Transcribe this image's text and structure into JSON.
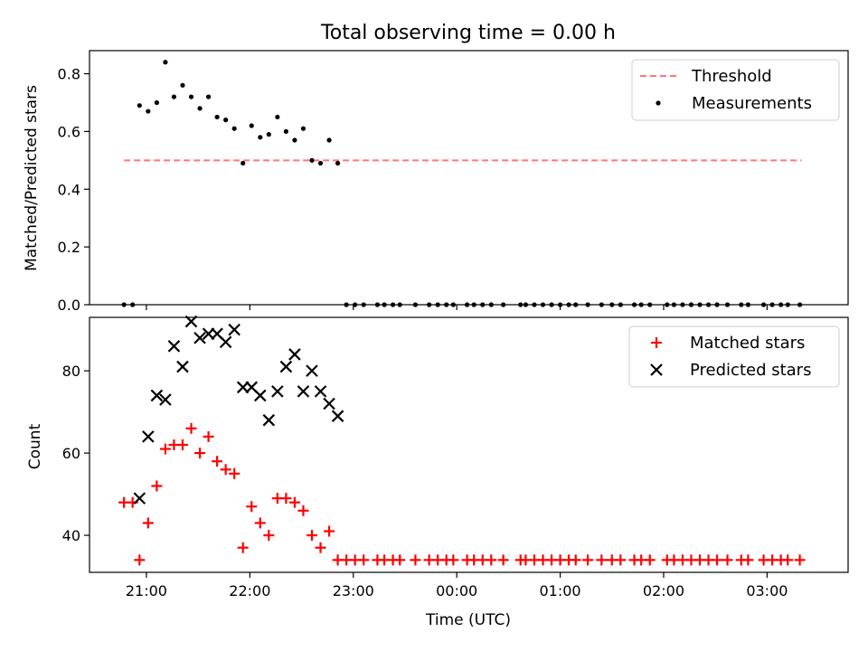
{
  "chart_data": [
    {
      "type": "scatter",
      "title": "Total observing time = 0.00 h",
      "xlabel": "",
      "ylabel": "Matched/Predicted stars",
      "ylim": [
        0.0,
        0.88
      ],
      "xlim": [
        "20:27",
        "03:47"
      ],
      "x_ticks": [
        "21:00",
        "22:00",
        "23:00",
        "00:00",
        "01:00",
        "02:00",
        "03:00"
      ],
      "y_ticks": [
        "0.0",
        "0.2",
        "0.4",
        "0.6",
        "0.8"
      ],
      "grid": false,
      "legend_position": "top-right",
      "threshold": {
        "name": "Threshold",
        "value": 0.5,
        "x_range": [
          "20:47",
          "03:20"
        ],
        "color": "#ff7777",
        "style": "dashed"
      },
      "series": [
        {
          "name": "Measurements",
          "color": "#000000",
          "points": [
            [
              "20:47",
              0.0
            ],
            [
              "20:52",
              0.0
            ],
            [
              "20:56",
              0.69
            ],
            [
              "21:01",
              0.67
            ],
            [
              "21:06",
              0.7
            ],
            [
              "21:11",
              0.84
            ],
            [
              "21:16",
              0.72
            ],
            [
              "21:21",
              0.76
            ],
            [
              "21:26",
              0.72
            ],
            [
              "21:31",
              0.68
            ],
            [
              "21:36",
              0.72
            ],
            [
              "21:41",
              0.65
            ],
            [
              "21:46",
              0.64
            ],
            [
              "21:51",
              0.61
            ],
            [
              "21:56",
              0.49
            ],
            [
              "22:01",
              0.62
            ],
            [
              "22:06",
              0.58
            ],
            [
              "22:11",
              0.59
            ],
            [
              "22:16",
              0.65
            ],
            [
              "22:21",
              0.6
            ],
            [
              "22:26",
              0.57
            ],
            [
              "22:31",
              0.61
            ],
            [
              "22:36",
              0.5
            ],
            [
              "22:41",
              0.49
            ],
            [
              "22:46",
              0.57
            ],
            [
              "22:51",
              0.49
            ],
            [
              "22:56",
              0.0
            ],
            [
              "23:01",
              0.0
            ],
            [
              "23:06",
              0.0
            ],
            [
              "23:14",
              0.0
            ],
            [
              "23:18",
              0.0
            ],
            [
              "23:23",
              0.0
            ],
            [
              "23:27",
              0.0
            ],
            [
              "23:36",
              0.0
            ],
            [
              "23:44",
              0.0
            ],
            [
              "23:49",
              0.0
            ],
            [
              "23:54",
              0.0
            ],
            [
              "23:58",
              0.0
            ],
            [
              "00:06",
              0.0
            ],
            [
              "00:10",
              0.0
            ],
            [
              "00:15",
              0.0
            ],
            [
              "00:20",
              0.0
            ],
            [
              "00:27",
              0.0
            ],
            [
              "00:37",
              0.0
            ],
            [
              "00:40",
              0.0
            ],
            [
              "00:45",
              0.0
            ],
            [
              "00:50",
              0.0
            ],
            [
              "00:55",
              0.0
            ],
            [
              "01:00",
              0.0
            ],
            [
              "01:05",
              0.0
            ],
            [
              "01:09",
              0.0
            ],
            [
              "01:16",
              0.0
            ],
            [
              "01:24",
              0.0
            ],
            [
              "01:30",
              0.0
            ],
            [
              "01:35",
              0.0
            ],
            [
              "01:43",
              0.0
            ],
            [
              "01:47",
              0.0
            ],
            [
              "01:52",
              0.0
            ],
            [
              "02:02",
              0.0
            ],
            [
              "02:06",
              0.0
            ],
            [
              "02:11",
              0.0
            ],
            [
              "02:16",
              0.0
            ],
            [
              "02:21",
              0.0
            ],
            [
              "02:26",
              0.0
            ],
            [
              "02:31",
              0.0
            ],
            [
              "02:37",
              0.0
            ],
            [
              "02:45",
              0.0
            ],
            [
              "02:49",
              0.0
            ],
            [
              "02:58",
              0.0
            ],
            [
              "03:03",
              0.0
            ],
            [
              "03:08",
              0.0
            ],
            [
              "03:12",
              0.0
            ],
            [
              "03:19",
              0.0
            ]
          ]
        }
      ]
    },
    {
      "type": "scatter",
      "title": "",
      "xlabel": "Time (UTC)",
      "ylabel": "Count",
      "ylim": [
        31,
        93
      ],
      "xlim": [
        "20:27",
        "03:47"
      ],
      "x_ticks": [
        "21:00",
        "22:00",
        "23:00",
        "00:00",
        "01:00",
        "02:00",
        "03:00"
      ],
      "y_ticks": [
        "40",
        "60",
        "80"
      ],
      "grid": false,
      "legend_position": "top-right",
      "series": [
        {
          "name": "Matched stars",
          "marker": "plus",
          "color": "#ff0000",
          "points": [
            [
              "20:47",
              48
            ],
            [
              "20:52",
              48
            ],
            [
              "20:56",
              34
            ],
            [
              "21:01",
              43
            ],
            [
              "21:06",
              52
            ],
            [
              "21:11",
              61
            ],
            [
              "21:16",
              62
            ],
            [
              "21:21",
              62
            ],
            [
              "21:26",
              66
            ],
            [
              "21:31",
              60
            ],
            [
              "21:36",
              64
            ],
            [
              "21:41",
              58
            ],
            [
              "21:46",
              56
            ],
            [
              "21:51",
              55
            ],
            [
              "21:56",
              37
            ],
            [
              "22:01",
              47
            ],
            [
              "22:06",
              43
            ],
            [
              "22:11",
              40
            ],
            [
              "22:16",
              49
            ],
            [
              "22:21",
              49
            ],
            [
              "22:26",
              48
            ],
            [
              "22:31",
              46
            ],
            [
              "22:36",
              40
            ],
            [
              "22:41",
              37
            ],
            [
              "22:46",
              41
            ],
            [
              "22:51",
              34
            ],
            [
              "22:56",
              34
            ],
            [
              "23:01",
              34
            ],
            [
              "23:06",
              34
            ],
            [
              "23:14",
              34
            ],
            [
              "23:18",
              34
            ],
            [
              "23:23",
              34
            ],
            [
              "23:27",
              34
            ],
            [
              "23:36",
              34
            ],
            [
              "23:44",
              34
            ],
            [
              "23:49",
              34
            ],
            [
              "23:54",
              34
            ],
            [
              "23:58",
              34
            ],
            [
              "00:06",
              34
            ],
            [
              "00:10",
              34
            ],
            [
              "00:15",
              34
            ],
            [
              "00:20",
              34
            ],
            [
              "00:27",
              34
            ],
            [
              "00:37",
              34
            ],
            [
              "00:40",
              34
            ],
            [
              "00:45",
              34
            ],
            [
              "00:50",
              34
            ],
            [
              "00:55",
              34
            ],
            [
              "01:00",
              34
            ],
            [
              "01:05",
              34
            ],
            [
              "01:09",
              34
            ],
            [
              "01:16",
              34
            ],
            [
              "01:24",
              34
            ],
            [
              "01:30",
              34
            ],
            [
              "01:35",
              34
            ],
            [
              "01:43",
              34
            ],
            [
              "01:47",
              34
            ],
            [
              "01:52",
              34
            ],
            [
              "02:02",
              34
            ],
            [
              "02:06",
              34
            ],
            [
              "02:11",
              34
            ],
            [
              "02:16",
              34
            ],
            [
              "02:21",
              34
            ],
            [
              "02:26",
              34
            ],
            [
              "02:31",
              34
            ],
            [
              "02:37",
              34
            ],
            [
              "02:45",
              34
            ],
            [
              "02:49",
              34
            ],
            [
              "02:58",
              34
            ],
            [
              "03:03",
              34
            ],
            [
              "03:08",
              34
            ],
            [
              "03:12",
              34
            ],
            [
              "03:19",
              34
            ]
          ]
        },
        {
          "name": "Predicted stars",
          "marker": "x",
          "color": "#000000",
          "points": [
            [
              "20:56",
              49
            ],
            [
              "21:01",
              64
            ],
            [
              "21:06",
              74
            ],
            [
              "21:11",
              73
            ],
            [
              "21:16",
              86
            ],
            [
              "21:21",
              81
            ],
            [
              "21:26",
              92
            ],
            [
              "21:31",
              88
            ],
            [
              "21:36",
              89
            ],
            [
              "21:41",
              89
            ],
            [
              "21:46",
              87
            ],
            [
              "21:51",
              90
            ],
            [
              "21:56",
              76
            ],
            [
              "22:01",
              76
            ],
            [
              "22:06",
              74
            ],
            [
              "22:11",
              68
            ],
            [
              "22:16",
              75
            ],
            [
              "22:21",
              81
            ],
            [
              "22:26",
              84
            ],
            [
              "22:31",
              75
            ],
            [
              "22:36",
              80
            ],
            [
              "22:41",
              75
            ],
            [
              "22:46",
              72
            ],
            [
              "22:51",
              69
            ]
          ]
        }
      ]
    }
  ]
}
